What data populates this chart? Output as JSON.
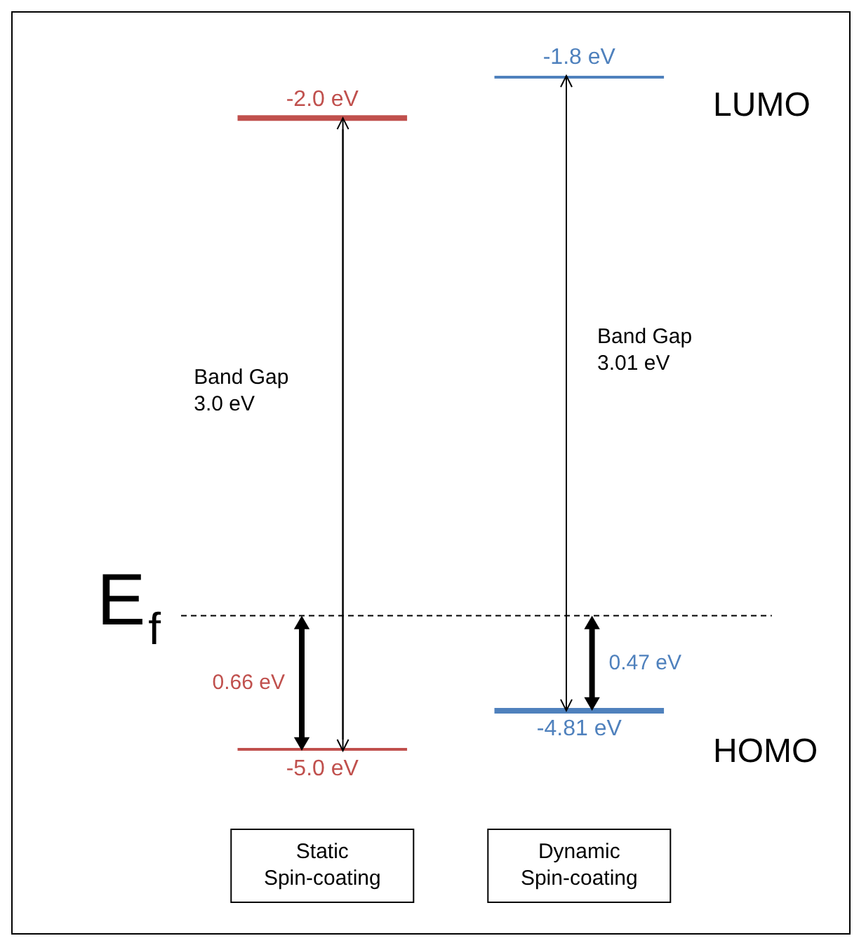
{
  "chart_data": {
    "type": "other",
    "categories": [
      "Static Spin-coating",
      "Dynamic Spin-coating"
    ],
    "series": [
      {
        "name": "LUMO",
        "colors": [
          "#c0504d",
          "#4f81bd"
        ],
        "values": [
          -2.0,
          -1.8
        ],
        "value_labels": [
          "-2.0 eV",
          "-1.8 eV"
        ]
      },
      {
        "name": "HOMO",
        "colors": [
          "#c0504d",
          "#4f81bd"
        ],
        "values": [
          -5.0,
          -4.81
        ],
        "value_labels": [
          "-5.0 eV",
          "-4.81 eV"
        ]
      }
    ],
    "ref_lines": [
      {
        "axis": "y",
        "label": "E$_{f}$",
        "line_style": "dashed"
      }
    ],
    "annotations": [
      {
        "text": "Band Gap\n3.0 eV",
        "x": "Static Spin-coating"
      },
      {
        "text": "0.66 eV",
        "x": "Static Spin-coating"
      },
      {
        "text": "Band Gap\n3.01 eV",
        "x": "Dynamic Spin-coating"
      },
      {
        "text": "0.47 eV",
        "x": "Dynamic Spin-coating"
      }
    ]
  }
}
